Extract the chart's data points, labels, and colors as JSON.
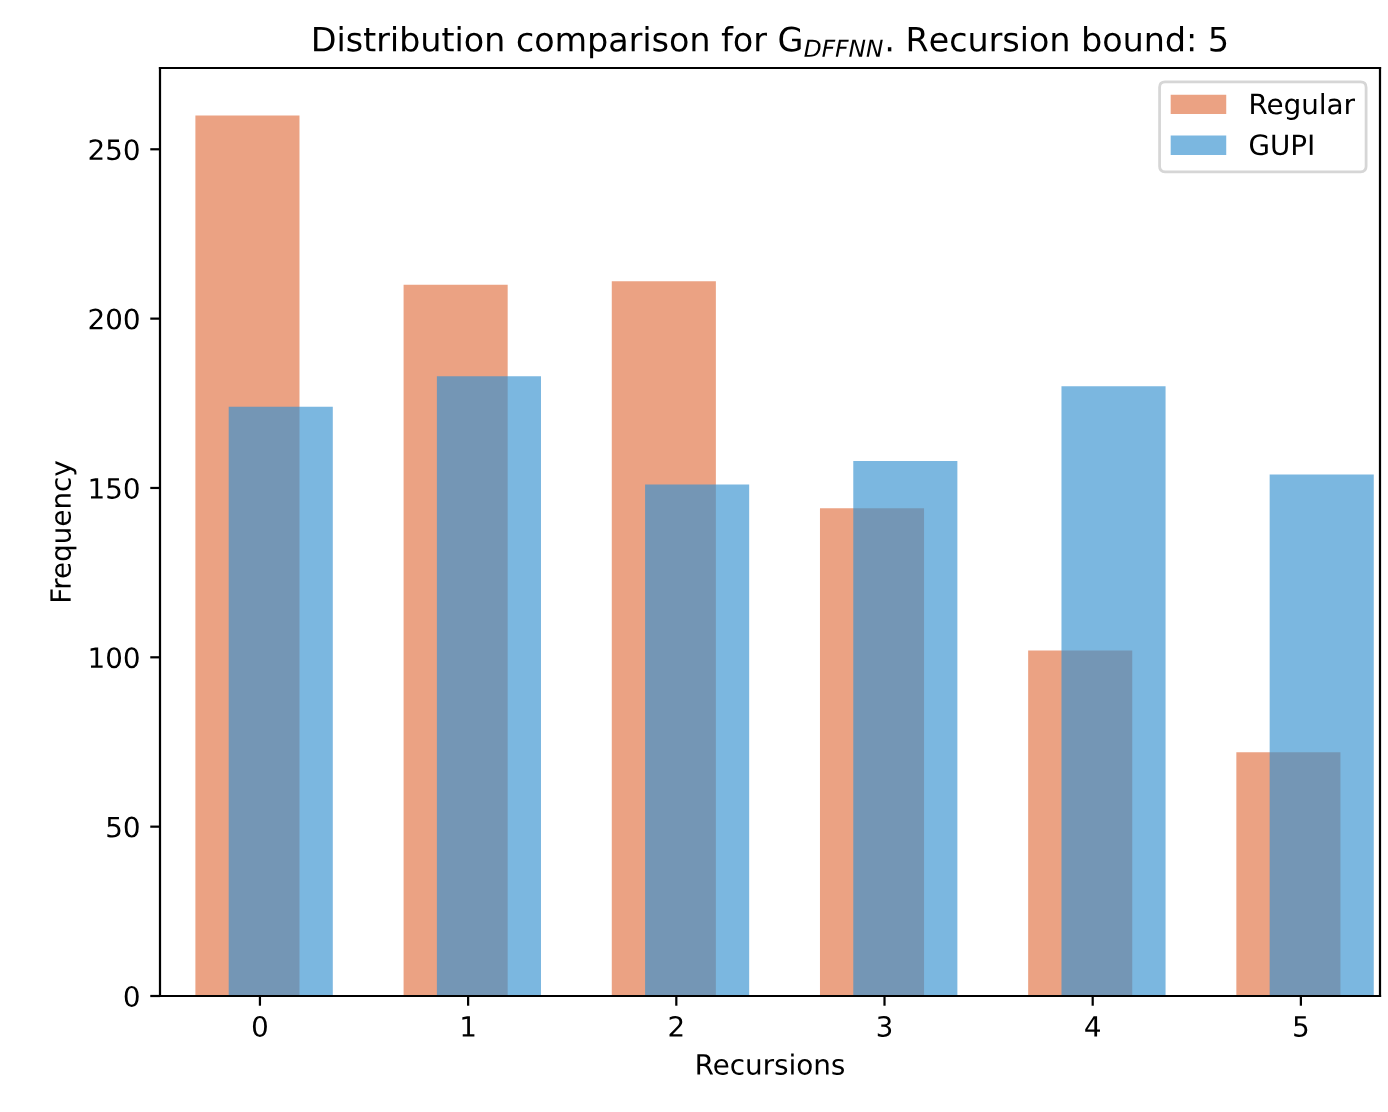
{
  "chart_data": {
    "type": "bar",
    "title": "Distribution comparison for G$_{DFFNN}$. Recursion bound: 5",
    "xlabel": "Recursions",
    "ylabel": "Frequency",
    "categories": [
      "0",
      "1",
      "2",
      "3",
      "4",
      "5"
    ],
    "series": [
      {
        "name": "Regular",
        "color": "#eba283",
        "values": [
          260,
          210,
          211,
          144,
          102,
          72
        ]
      },
      {
        "name": "GUPI",
        "color": "#7bb7e0",
        "values": [
          174,
          183,
          151,
          158,
          180,
          154
        ]
      }
    ],
    "ylim": [
      0,
      274
    ],
    "yticks": [
      0,
      50,
      100,
      150,
      200,
      250
    ],
    "grid": false,
    "legend": "top right"
  }
}
